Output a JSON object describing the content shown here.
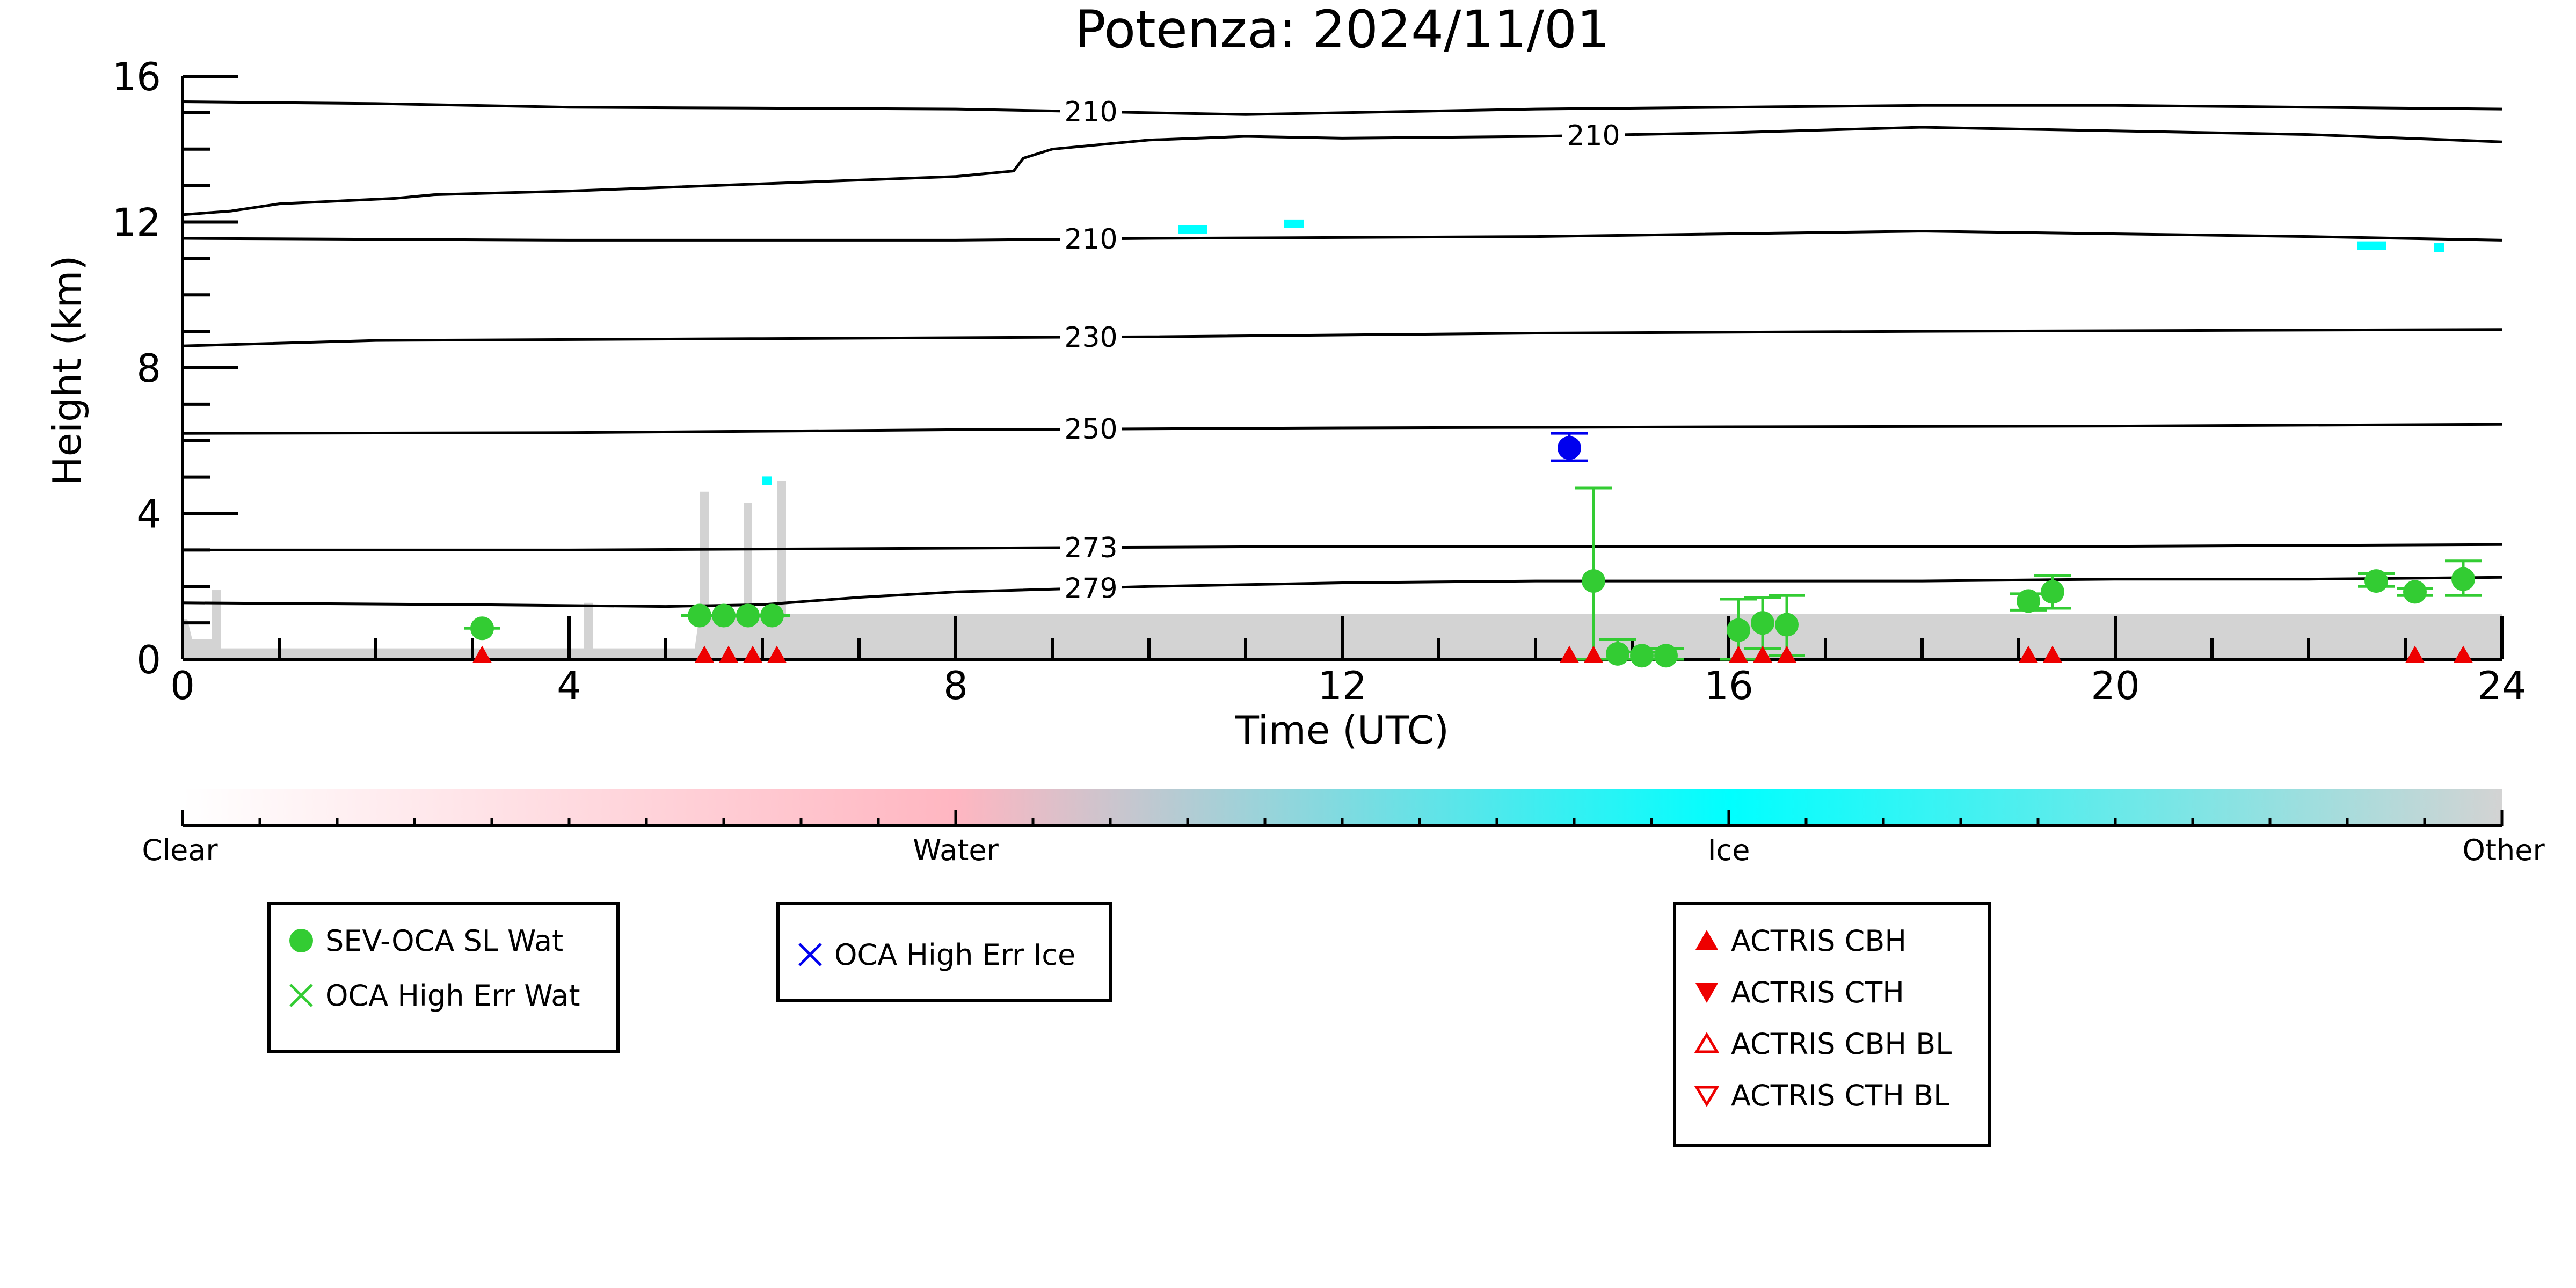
{
  "chart_data": {
    "type": "scatter",
    "title": "Potenza: 2024/11/01",
    "xlabel": "Time (UTC)",
    "ylabel": "Height (km)",
    "xlim": [
      0,
      24
    ],
    "ylim": [
      0,
      16
    ],
    "x_ticks": [
      "0",
      "4",
      "8",
      "12",
      "16",
      "20",
      "24"
    ],
    "y_ticks": [
      "0",
      "4",
      "8",
      "12",
      "16"
    ],
    "contours": [
      {
        "label": "279",
        "label_x": 9.4,
        "points": [
          [
            0,
            1.55
          ],
          [
            3,
            1.5
          ],
          [
            5,
            1.45
          ],
          [
            6,
            1.5
          ],
          [
            7,
            1.7
          ],
          [
            8,
            1.85
          ],
          [
            10,
            2.0
          ],
          [
            12,
            2.1
          ],
          [
            14,
            2.15
          ],
          [
            16,
            2.15
          ],
          [
            18,
            2.15
          ],
          [
            20,
            2.2
          ],
          [
            22,
            2.2
          ],
          [
            24,
            2.25
          ]
        ]
      },
      {
        "label": "273",
        "label_x": 9.4,
        "points": [
          [
            0,
            3.0
          ],
          [
            4,
            3.0
          ],
          [
            8,
            3.05
          ],
          [
            12,
            3.1
          ],
          [
            16,
            3.1
          ],
          [
            20,
            3.1
          ],
          [
            24,
            3.15
          ]
        ]
      },
      {
        "label": "250",
        "label_x": 9.4,
        "points": [
          [
            0,
            6.2
          ],
          [
            4,
            6.22
          ],
          [
            8,
            6.3
          ],
          [
            12,
            6.35
          ],
          [
            16,
            6.38
          ],
          [
            20,
            6.4
          ],
          [
            24,
            6.45
          ]
        ]
      },
      {
        "label": "230",
        "label_x": 9.4,
        "points": [
          [
            0,
            8.6
          ],
          [
            2,
            8.75
          ],
          [
            6,
            8.8
          ],
          [
            10,
            8.85
          ],
          [
            14,
            8.95
          ],
          [
            18,
            9.0
          ],
          [
            24,
            9.05
          ]
        ]
      },
      {
        "label": "210",
        "label_x": 9.4,
        "points": [
          [
            0,
            11.55
          ],
          [
            4,
            11.5
          ],
          [
            8,
            11.5
          ],
          [
            10,
            11.55
          ],
          [
            14,
            11.6
          ],
          [
            18,
            11.75
          ],
          [
            22,
            11.6
          ],
          [
            24,
            11.5
          ]
        ]
      },
      {
        "label": "210",
        "label_x": 14.6,
        "points": [
          [
            0,
            12.2
          ],
          [
            0.5,
            12.3
          ],
          [
            1,
            12.5
          ],
          [
            2.2,
            12.65
          ],
          [
            2.6,
            12.75
          ],
          [
            4,
            12.85
          ],
          [
            6,
            13.05
          ],
          [
            8,
            13.25
          ],
          [
            8.6,
            13.4
          ],
          [
            8.7,
            13.75
          ],
          [
            9,
            14.0
          ],
          [
            10,
            14.25
          ],
          [
            11,
            14.35
          ],
          [
            12,
            14.3
          ],
          [
            14,
            14.35
          ],
          [
            16,
            14.45
          ],
          [
            18,
            14.6
          ],
          [
            20,
            14.5
          ],
          [
            22,
            14.4
          ],
          [
            24,
            14.2
          ]
        ]
      },
      {
        "label": "210",
        "label_x": 9.4,
        "points": [
          [
            0,
            15.3
          ],
          [
            2,
            15.25
          ],
          [
            4,
            15.15
          ],
          [
            8,
            15.1
          ],
          [
            10,
            15.0
          ],
          [
            11,
            14.95
          ],
          [
            12,
            15.0
          ],
          [
            14,
            15.1
          ],
          [
            16,
            15.15
          ],
          [
            18,
            15.2
          ],
          [
            20,
            15.2
          ],
          [
            22,
            15.15
          ],
          [
            24,
            15.1
          ]
        ]
      }
    ],
    "series": [
      {
        "name": "SEV-OCA SL Wat",
        "color": "#33cc33",
        "marker": "circle",
        "points": [
          {
            "x": 3.1,
            "y": 0.85,
            "ylo": 0.85,
            "yhi": 0.85
          },
          {
            "x": 5.35,
            "y": 1.2,
            "ylo": 1.2,
            "yhi": 1.2
          },
          {
            "x": 5.6,
            "y": 1.2,
            "ylo": 1.2,
            "yhi": 1.2
          },
          {
            "x": 5.85,
            "y": 1.2,
            "ylo": 1.2,
            "yhi": 1.2
          },
          {
            "x": 6.1,
            "y": 1.2,
            "ylo": 1.2,
            "yhi": 1.2
          },
          {
            "x": 14.6,
            "y": 2.15,
            "ylo": 0.0,
            "yhi": 4.7
          },
          {
            "x": 14.85,
            "y": 0.15,
            "ylo": 0.0,
            "yhi": 0.55
          },
          {
            "x": 15.1,
            "y": 0.1,
            "ylo": 0.0,
            "yhi": 0.2
          },
          {
            "x": 15.35,
            "y": 0.1,
            "ylo": 0.0,
            "yhi": 0.3
          },
          {
            "x": 16.1,
            "y": 0.8,
            "ylo": 0.0,
            "yhi": 1.65
          },
          {
            "x": 16.35,
            "y": 1.0,
            "ylo": 0.3,
            "yhi": 1.7
          },
          {
            "x": 16.6,
            "y": 0.95,
            "ylo": 0.1,
            "yhi": 1.75
          },
          {
            "x": 19.1,
            "y": 1.6,
            "ylo": 1.35,
            "yhi": 1.8
          },
          {
            "x": 19.35,
            "y": 1.85,
            "ylo": 1.4,
            "yhi": 2.3
          },
          {
            "x": 22.7,
            "y": 2.15,
            "ylo": 2.0,
            "yhi": 2.35
          },
          {
            "x": 23.1,
            "y": 1.85,
            "ylo": 1.75,
            "yhi": 1.95
          },
          {
            "x": 23.6,
            "y": 2.2,
            "ylo": 1.75,
            "yhi": 2.7
          }
        ]
      },
      {
        "name": "OCA High Err Ice",
        "color": "#0000ee",
        "marker": "circle",
        "points": [
          {
            "x": 14.35,
            "y": 5.8,
            "ylo": 5.45,
            "yhi": 6.2
          }
        ]
      },
      {
        "name": "ACTRIS CBH",
        "color": "#ee0000",
        "marker": "triangle-up",
        "points": [
          {
            "x": 3.1,
            "y": 0.08
          },
          {
            "x": 5.4,
            "y": 0.08
          },
          {
            "x": 5.65,
            "y": 0.08
          },
          {
            "x": 5.9,
            "y": 0.08
          },
          {
            "x": 6.15,
            "y": 0.08
          },
          {
            "x": 14.35,
            "y": 0.08
          },
          {
            "x": 14.6,
            "y": 0.08
          },
          {
            "x": 16.1,
            "y": 0.08
          },
          {
            "x": 16.35,
            "y": 0.08
          },
          {
            "x": 16.6,
            "y": 0.08
          },
          {
            "x": 19.1,
            "y": 0.08
          },
          {
            "x": 19.35,
            "y": 0.08
          },
          {
            "x": 23.1,
            "y": 0.08
          },
          {
            "x": 23.6,
            "y": 0.08
          }
        ]
      }
    ],
    "ice_patches": [
      {
        "x0": 10.3,
        "x1": 10.6,
        "y": 11.8
      },
      {
        "x0": 11.4,
        "x1": 11.6,
        "y": 11.95
      },
      {
        "x0": 6.0,
        "x1": 6.1,
        "y": 4.9
      },
      {
        "x0": 22.5,
        "x1": 22.8,
        "y": 11.35
      },
      {
        "x0": 23.3,
        "x1": 23.4,
        "y": 11.3
      }
    ],
    "other_region": {
      "description_free": true,
      "color": "#cccccc"
    },
    "colorbar": {
      "labels": [
        "Clear",
        "Water",
        "Ice",
        "Other"
      ],
      "colors": [
        "#ffffff",
        "#ffb6c1",
        "#00ffff",
        "#d3d3d3"
      ]
    },
    "legends": [
      {
        "items": [
          {
            "label": "SEV-OCA SL Wat",
            "symbol": "circle",
            "color": "#33cc33"
          },
          {
            "label": "OCA High Err Wat",
            "symbol": "x",
            "color": "#33cc33"
          }
        ]
      },
      {
        "items": [
          {
            "label": "OCA High Err Ice",
            "symbol": "x",
            "color": "#0000ee"
          }
        ]
      },
      {
        "items": [
          {
            "label": "ACTRIS CBH",
            "symbol": "triangle-up",
            "color": "#ee0000"
          },
          {
            "label": "ACTRIS CTH",
            "symbol": "triangle-down",
            "color": "#ee0000"
          },
          {
            "label": "ACTRIS CBH BL",
            "symbol": "triangle-up-open",
            "color": "#ee0000"
          },
          {
            "label": "ACTRIS CTH BL",
            "symbol": "triangle-down-open",
            "color": "#ee0000"
          }
        ]
      }
    ]
  }
}
